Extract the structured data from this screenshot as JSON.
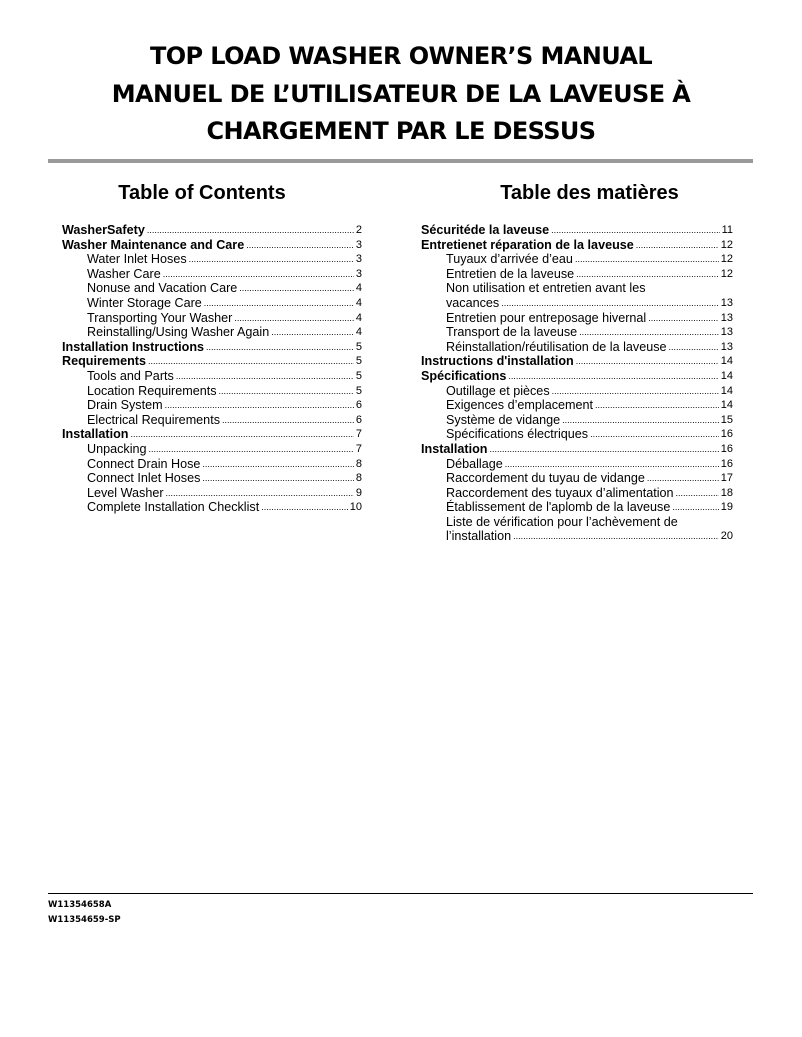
{
  "title": [
    "TOP LOAD WASHER OWNER’S MANUAL",
    "MANUEL DE L’UTILISATEUR DE LA LAVEUSE À",
    "CHARGEMENT PAR LE DESSUS"
  ],
  "toc_en": {
    "heading": "Table of Contents",
    "entries": [
      {
        "label": "WasherSafety",
        "page": "2",
        "level": 0
      },
      {
        "label": "Washer Maintenance and Care",
        "page": "3",
        "level": 0
      },
      {
        "label": "Water Inlet Hoses",
        "page": "3",
        "level": 1
      },
      {
        "label": "Washer Care",
        "page": "3",
        "level": 1
      },
      {
        "label": "Nonuse and Vacation Care",
        "page": "4",
        "level": 1
      },
      {
        "label": "Winter Storage Care",
        "page": "4",
        "level": 1
      },
      {
        "label": "Transporting Your Washer",
        "page": "4",
        "level": 1
      },
      {
        "label": "Reinstalling/Using Washer Again",
        "page": "4",
        "level": 1
      },
      {
        "label": "Installation Instructions",
        "page": "5",
        "level": 0
      },
      {
        "label": "Requirements",
        "page": "5",
        "level": 0
      },
      {
        "label": "Tools and Parts",
        "page": "5",
        "level": 1
      },
      {
        "label": "Location Requirements",
        "page": "5",
        "level": 1
      },
      {
        "label": "Drain System",
        "page": "6",
        "level": 1
      },
      {
        "label": "Electrical Requirements",
        "page": "6",
        "level": 1
      },
      {
        "label": "Installation",
        "page": "7",
        "level": 0
      },
      {
        "label": "Unpacking",
        "page": "7",
        "level": 1
      },
      {
        "label": "Connect Drain Hose",
        "page": "8",
        "level": 1
      },
      {
        "label": "Connect Inlet Hoses",
        "page": "8",
        "level": 1
      },
      {
        "label": "Level Washer",
        "page": "9",
        "level": 1
      },
      {
        "label": "Complete Installation Checklist",
        "page": "10",
        "level": 1
      }
    ]
  },
  "toc_fr": {
    "heading": "Table des matières",
    "entries": [
      {
        "label": "Sécuritéde la laveuse",
        "page": "11",
        "level": 0
      },
      {
        "label": "Entretienet réparation de la laveuse",
        "page": "12",
        "level": 0
      },
      {
        "label": "Tuyaux d’arrivée d’eau",
        "page": "12",
        "level": 1
      },
      {
        "label": "Entretien de la laveuse",
        "page": "12",
        "level": 1
      },
      {
        "label": "Non utilisation et entretien avant les",
        "page": "",
        "level": 1
      },
      {
        "label": "vacances",
        "page": "13",
        "level": 1
      },
      {
        "label": "Entretien pour entreposage hivernal",
        "page": "13",
        "level": 1
      },
      {
        "label": "Transport de la laveuse",
        "page": "13",
        "level": 1
      },
      {
        "label": "Réinstallation/réutilisation de la laveuse",
        "page": "13",
        "level": 1
      },
      {
        "label": "Instructions d'installation",
        "page": "14",
        "level": 0
      },
      {
        "label": "Spécifications",
        "page": "14",
        "level": 0
      },
      {
        "label": "Outillage et pièces",
        "page": "14",
        "level": 1
      },
      {
        "label": "Exigences d’emplacement",
        "page": "14",
        "level": 1
      },
      {
        "label": "Système de vidange",
        "page": "15",
        "level": 1
      },
      {
        "label": "Spécifications électriques",
        "page": "16",
        "level": 1
      },
      {
        "label": "Installation",
        "page": "16",
        "level": 0
      },
      {
        "label": "Déballage",
        "page": "16",
        "level": 1
      },
      {
        "label": "Raccordement du tuyau de vidange",
        "page": "17",
        "level": 1
      },
      {
        "label": "Raccordement des tuyaux d’alimentation",
        "page": "18",
        "level": 1
      },
      {
        "label": "Établissement de l'aplomb de la laveuse",
        "page": "19",
        "level": 1
      },
      {
        "label": "Liste de vérification pour l’achèvement de",
        "page": "",
        "level": 1
      },
      {
        "label": "l’installation",
        "page": "20",
        "level": 1
      }
    ]
  },
  "footer": {
    "codes": [
      "W11354658A",
      "W11354659-SP"
    ]
  }
}
